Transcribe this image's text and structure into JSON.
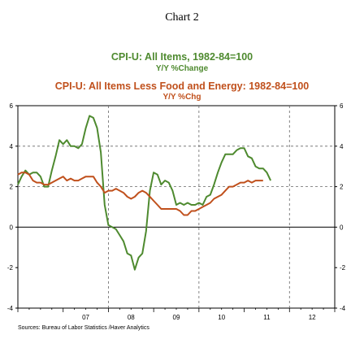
{
  "header": {
    "title": "Chart 2",
    "series1_title": "CPI-U: All Items, 1982-84=100",
    "series1_subtitle": "Y/Y %Change",
    "series2_title": "CPI-U: All Items Less Food and Energy: 1982-84=100",
    "series2_subtitle": "Y/Y %Chg"
  },
  "footer": {
    "source": "Sources: Bureau of Labor Statistics /Haver Analytics"
  },
  "chart_data": {
    "type": "line",
    "title": "Chart 2",
    "xlabel": "",
    "ylabel": "",
    "xlim": [
      2006.0,
      2013.0
    ],
    "ylim": [
      -4,
      6
    ],
    "y_ticks": [
      -4,
      -2,
      0,
      2,
      4,
      6
    ],
    "x_tick_labels": [
      {
        "label": "07",
        "x": 2007.5
      },
      {
        "label": "08",
        "x": 2008.5
      },
      {
        "label": "09",
        "x": 2009.5
      },
      {
        "label": "10",
        "x": 2010.5
      },
      {
        "label": "11",
        "x": 2011.5
      },
      {
        "label": "12",
        "x": 2012.5
      }
    ],
    "vertical_gridlines": [
      2008.0,
      2010.0,
      2012.0
    ],
    "horizontal_gridlines": [
      2,
      4
    ],
    "zero_line": 0,
    "series": [
      {
        "name": "CPI-U: All Items, 1982-84=100",
        "color": "#4e8a2f",
        "points": [
          [
            2006.0,
            2.1
          ],
          [
            2006.083,
            2.5
          ],
          [
            2006.167,
            2.8
          ],
          [
            2006.25,
            2.6
          ],
          [
            2006.333,
            2.7
          ],
          [
            2006.417,
            2.7
          ],
          [
            2006.5,
            2.5
          ],
          [
            2006.583,
            2.0
          ],
          [
            2006.667,
            2.0
          ],
          [
            2006.75,
            2.8
          ],
          [
            2006.833,
            3.5
          ],
          [
            2006.917,
            4.3
          ],
          [
            2007.0,
            4.1
          ],
          [
            2007.083,
            4.3
          ],
          [
            2007.167,
            4.0
          ],
          [
            2007.25,
            4.0
          ],
          [
            2007.333,
            3.9
          ],
          [
            2007.417,
            4.1
          ],
          [
            2007.5,
            4.9
          ],
          [
            2007.583,
            5.5
          ],
          [
            2007.667,
            5.4
          ],
          [
            2007.75,
            4.9
          ],
          [
            2007.833,
            3.7
          ],
          [
            2007.917,
            1.1
          ],
          [
            2008.0,
            0.1
          ],
          [
            2008.083,
            0.0
          ],
          [
            2008.167,
            -0.1
          ],
          [
            2008.25,
            -0.4
          ],
          [
            2008.333,
            -0.7
          ],
          [
            2008.417,
            -1.3
          ],
          [
            2008.5,
            -1.4
          ],
          [
            2008.583,
            -2.1
          ],
          [
            2008.667,
            -1.5
          ],
          [
            2008.75,
            -1.3
          ],
          [
            2008.833,
            -0.2
          ],
          [
            2008.917,
            1.8
          ],
          [
            2009.0,
            2.7
          ],
          [
            2009.083,
            2.6
          ],
          [
            2009.167,
            2.1
          ],
          [
            2009.25,
            2.3
          ],
          [
            2009.333,
            2.2
          ],
          [
            2009.417,
            1.8
          ],
          [
            2009.5,
            1.1
          ],
          [
            2009.583,
            1.2
          ],
          [
            2009.667,
            1.1
          ],
          [
            2009.75,
            1.2
          ],
          [
            2009.833,
            1.1
          ],
          [
            2009.917,
            1.1
          ],
          [
            2010.0,
            1.2
          ],
          [
            2010.083,
            1.1
          ],
          [
            2010.167,
            1.5
          ],
          [
            2010.25,
            1.6
          ],
          [
            2010.333,
            2.1
          ],
          [
            2010.417,
            2.7
          ],
          [
            2010.5,
            3.2
          ],
          [
            2010.583,
            3.6
          ],
          [
            2010.667,
            3.6
          ],
          [
            2010.75,
            3.6
          ],
          [
            2010.833,
            3.8
          ],
          [
            2010.917,
            3.9
          ],
          [
            2011.0,
            3.9
          ],
          [
            2011.083,
            3.5
          ],
          [
            2011.167,
            3.4
          ],
          [
            2011.25,
            3.0
          ],
          [
            2011.333,
            2.9
          ],
          [
            2011.417,
            2.9
          ],
          [
            2011.5,
            2.7
          ],
          [
            2011.583,
            2.3
          ]
        ]
      },
      {
        "name": "CPI-U: All Items Less Food and Energy: 1982-84=100",
        "color": "#c0501c",
        "points": [
          [
            2006.0,
            2.6
          ],
          [
            2006.083,
            2.7
          ],
          [
            2006.167,
            2.7
          ],
          [
            2006.25,
            2.6
          ],
          [
            2006.333,
            2.3
          ],
          [
            2006.417,
            2.2
          ],
          [
            2006.5,
            2.2
          ],
          [
            2006.583,
            2.1
          ],
          [
            2006.667,
            2.1
          ],
          [
            2006.75,
            2.2
          ],
          [
            2006.833,
            2.3
          ],
          [
            2006.917,
            2.4
          ],
          [
            2007.0,
            2.5
          ],
          [
            2007.083,
            2.3
          ],
          [
            2007.167,
            2.4
          ],
          [
            2007.25,
            2.3
          ],
          [
            2007.333,
            2.3
          ],
          [
            2007.417,
            2.4
          ],
          [
            2007.5,
            2.5
          ],
          [
            2007.583,
            2.5
          ],
          [
            2007.667,
            2.5
          ],
          [
            2007.75,
            2.2
          ],
          [
            2007.833,
            2.0
          ],
          [
            2007.917,
            1.7
          ],
          [
            2008.0,
            1.8
          ],
          [
            2008.083,
            1.8
          ],
          [
            2008.167,
            1.9
          ],
          [
            2008.25,
            1.8
          ],
          [
            2008.333,
            1.7
          ],
          [
            2008.417,
            1.5
          ],
          [
            2008.5,
            1.4
          ],
          [
            2008.583,
            1.5
          ],
          [
            2008.667,
            1.7
          ],
          [
            2008.75,
            1.8
          ],
          [
            2008.833,
            1.7
          ],
          [
            2008.917,
            1.5
          ],
          [
            2009.0,
            1.3
          ],
          [
            2009.083,
            1.1
          ],
          [
            2009.167,
            0.9
          ],
          [
            2009.25,
            0.9
          ],
          [
            2009.333,
            0.9
          ],
          [
            2009.417,
            0.9
          ],
          [
            2009.5,
            0.9
          ],
          [
            2009.583,
            0.8
          ],
          [
            2009.667,
            0.6
          ],
          [
            2009.75,
            0.6
          ],
          [
            2009.833,
            0.8
          ],
          [
            2009.917,
            0.8
          ],
          [
            2010.0,
            0.9
          ],
          [
            2010.083,
            1.0
          ],
          [
            2010.167,
            1.1
          ],
          [
            2010.25,
            1.2
          ],
          [
            2010.333,
            1.4
          ],
          [
            2010.417,
            1.5
          ],
          [
            2010.5,
            1.6
          ],
          [
            2010.583,
            1.8
          ],
          [
            2010.667,
            2.0
          ],
          [
            2010.75,
            2.0
          ],
          [
            2010.833,
            2.1
          ],
          [
            2010.917,
            2.2
          ],
          [
            2011.0,
            2.2
          ],
          [
            2011.083,
            2.3
          ],
          [
            2011.167,
            2.2
          ],
          [
            2011.25,
            2.3
          ],
          [
            2011.333,
            2.3
          ],
          [
            2011.417,
            2.3
          ]
        ]
      }
    ]
  }
}
